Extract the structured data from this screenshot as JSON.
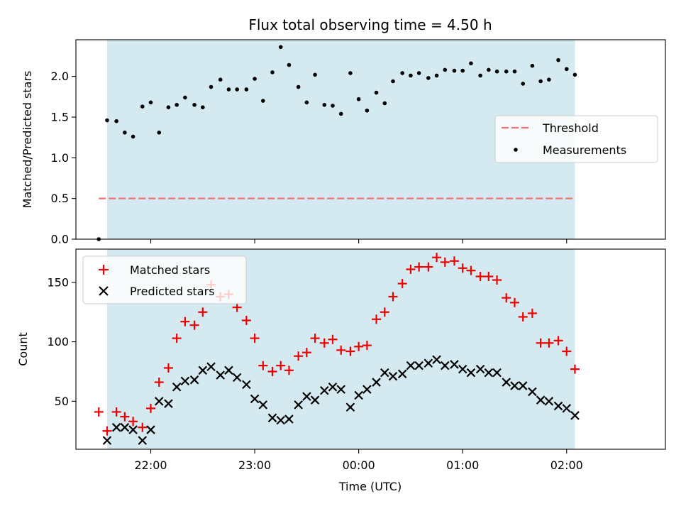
{
  "title": "Flux total observing time = 4.50 h",
  "x_ticks": [
    "22:00",
    "23:00",
    "00:00",
    "01:00",
    "02:00"
  ],
  "x_label": "Time (UTC)",
  "colors": {
    "shade": "#d4eaf0",
    "threshold": "#f07373",
    "measure": "#000000",
    "matched": "#ee0000",
    "predicted": "#000000"
  },
  "chart_data": [
    {
      "type": "scatter",
      "ylabel": "Matched/Predicted stars",
      "ylim": [
        0,
        2.45
      ],
      "y_ticks": [
        0.0,
        0.5,
        1.0,
        1.5,
        2.0
      ],
      "y_tick_labels": [
        "0.0",
        "0.5",
        "1.0",
        "1.5",
        "2.0"
      ],
      "x_range_hours": [
        -0.72,
        4.95
      ],
      "shaded_span_hours": [
        -0.42,
        4.08
      ],
      "legend_placement": "center-right",
      "threshold": {
        "name": "Threshold",
        "value": 0.5,
        "x_hours": [
          -0.5,
          4.08
        ]
      },
      "measurements": {
        "name": "Measurements",
        "x_hours": [
          -0.5,
          -0.42,
          -0.33,
          -0.25,
          -0.17,
          -0.08,
          0.0,
          0.08,
          0.17,
          0.25,
          0.33,
          0.42,
          0.5,
          0.58,
          0.67,
          0.75,
          0.83,
          0.92,
          1.0,
          1.08,
          1.17,
          1.25,
          1.33,
          1.42,
          1.5,
          1.58,
          1.67,
          1.75,
          1.83,
          1.92,
          2.0,
          2.08,
          2.17,
          2.25,
          2.33,
          2.42,
          2.5,
          2.58,
          2.67,
          2.75,
          2.83,
          2.92,
          3.0,
          3.08,
          3.17,
          3.25,
          3.33,
          3.42,
          3.5,
          3.58,
          3.67,
          3.75,
          3.83,
          3.92,
          4.0,
          4.08
        ],
        "values": [
          0.0,
          1.46,
          1.45,
          1.31,
          1.26,
          1.63,
          1.68,
          1.31,
          1.62,
          1.65,
          1.74,
          1.65,
          1.62,
          1.87,
          1.96,
          1.84,
          1.84,
          1.84,
          1.97,
          1.7,
          2.05,
          2.36,
          2.14,
          1.87,
          1.68,
          2.02,
          1.65,
          1.64,
          1.54,
          2.04,
          1.72,
          1.58,
          1.8,
          1.67,
          1.94,
          2.04,
          2.01,
          2.04,
          1.98,
          2.01,
          2.08,
          2.07,
          2.07,
          2.16,
          2.01,
          2.08,
          2.06,
          2.06,
          2.06,
          1.91,
          2.13,
          1.94,
          1.96,
          2.2,
          2.09,
          2.02
        ]
      }
    },
    {
      "type": "scatter",
      "ylabel": "Count",
      "ylim": [
        9.6,
        178
      ],
      "y_ticks": [
        50,
        100,
        150
      ],
      "y_tick_labels": [
        "50",
        "100",
        "150"
      ],
      "x_range_hours": [
        -0.72,
        4.95
      ],
      "shaded_span_hours": [
        -0.42,
        4.08
      ],
      "legend_placement": "upper left",
      "x_hours": [
        -0.5,
        -0.42,
        -0.33,
        -0.25,
        -0.17,
        -0.08,
        0.0,
        0.08,
        0.17,
        0.25,
        0.33,
        0.42,
        0.5,
        0.58,
        0.67,
        0.75,
        0.83,
        0.92,
        1.0,
        1.08,
        1.17,
        1.25,
        1.33,
        1.42,
        1.5,
        1.58,
        1.67,
        1.75,
        1.83,
        1.92,
        2.0,
        2.08,
        2.17,
        2.25,
        2.33,
        2.42,
        2.5,
        2.58,
        2.67,
        2.75,
        2.83,
        2.92,
        3.0,
        3.08,
        3.17,
        3.25,
        3.33,
        3.42,
        3.5,
        3.58,
        3.67,
        3.75,
        3.83,
        3.92,
        4.0,
        4.08
      ],
      "series": [
        {
          "name": "Matched stars",
          "marker": "+",
          "values": [
            41,
            25,
            41,
            37,
            33,
            28,
            44,
            66,
            78,
            103,
            117,
            114,
            125,
            148,
            138,
            140,
            129,
            118,
            103,
            80,
            75,
            80,
            76,
            88,
            91,
            103,
            99,
            102,
            93,
            92,
            96,
            97,
            119,
            125,
            138,
            149,
            161,
            163,
            163,
            171,
            167,
            168,
            162,
            160,
            155,
            155,
            152,
            137,
            133,
            121,
            124,
            99,
            99,
            101,
            92,
            77
          ]
        },
        {
          "name": "Predicted stars",
          "marker": "x",
          "values": [
            null,
            17,
            28,
            28,
            26,
            17,
            26,
            50,
            48,
            62,
            67,
            68,
            76,
            79,
            72,
            76,
            70,
            64,
            52,
            47,
            36,
            34,
            35,
            47,
            54,
            51,
            59,
            62,
            60,
            45,
            55,
            60,
            66,
            74,
            71,
            73,
            80,
            80,
            82,
            85,
            80,
            81,
            77,
            74,
            77,
            74,
            74,
            66,
            63,
            63,
            58,
            51,
            50,
            46,
            44,
            38
          ]
        }
      ]
    }
  ]
}
